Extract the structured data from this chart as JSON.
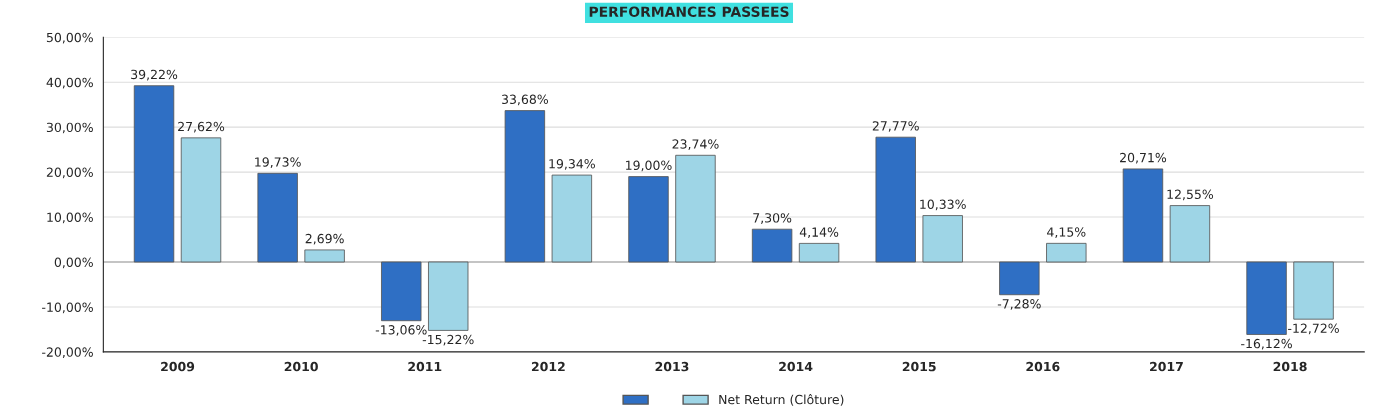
{
  "chart_data": {
    "type": "bar",
    "title": "PERFORMANCES PASSEES",
    "categories": [
      "2009",
      "2010",
      "2011",
      "2012",
      "2013",
      "2014",
      "2015",
      "2016",
      "2017",
      "2018"
    ],
    "series": [
      {
        "color": "#2f6fc4",
        "values": [
          39.22,
          19.73,
          -13.06,
          33.68,
          19.0,
          7.3,
          27.77,
          -7.28,
          20.71,
          -16.12
        ],
        "value_labels": [
          "39,22%",
          "19,73%",
          "-13,06%",
          "33,68%",
          "19,00%",
          "7,30%",
          "27,77%",
          "-7,28%",
          "20,71%",
          "-16,12%"
        ]
      },
      {
        "name": "Net Return (Clôture)",
        "color": "#9ed5e6",
        "values": [
          27.62,
          2.69,
          -15.22,
          19.34,
          23.74,
          4.14,
          10.33,
          4.15,
          12.55,
          -12.72
        ],
        "value_labels": [
          "27,62%",
          "2,69%",
          "-15,22%",
          "19,34%",
          "23,74%",
          "4,14%",
          "10,33%",
          "4,15%",
          "12,55%",
          "-12,72%"
        ]
      }
    ],
    "ylim": [
      -20,
      50
    ],
    "yticks": [
      {
        "value": -20,
        "label": "-20,00%"
      },
      {
        "value": -10,
        "label": "-10,00%"
      },
      {
        "value": 0,
        "label": "0,00%"
      },
      {
        "value": 10,
        "label": "10,00%"
      },
      {
        "value": 20,
        "label": "20,00%"
      },
      {
        "value": 30,
        "label": "30,00%"
      },
      {
        "value": 40,
        "label": "40,00%"
      },
      {
        "value": 50,
        "label": "50,00%"
      }
    ],
    "grid": "y",
    "legend": "bottom"
  }
}
